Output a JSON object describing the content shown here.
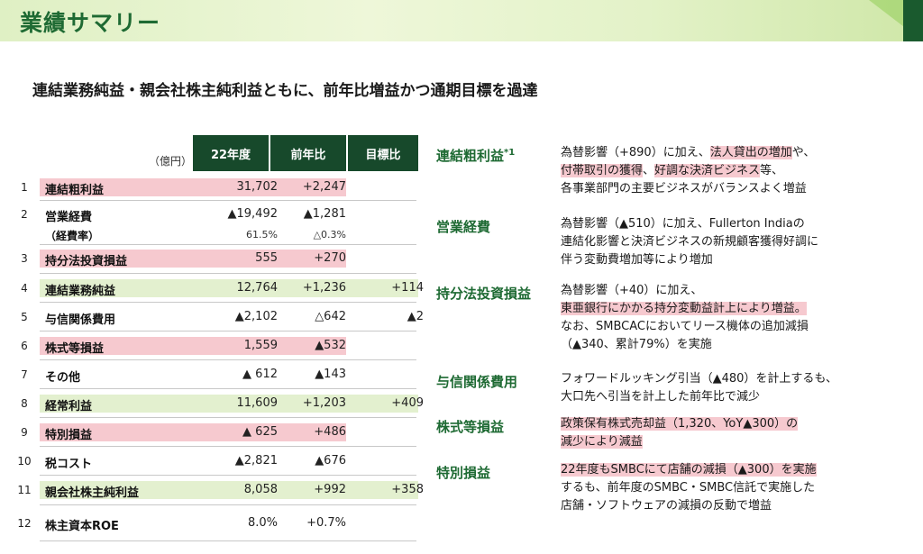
{
  "header": {
    "title": "業績サマリー"
  },
  "subtitle": "連結業務純益・親会社株主純利益ともに、前年比増益かつ通期目標を過達",
  "table": {
    "unit": "（億円）",
    "headers": [
      "22年度",
      "前年比",
      "目標比"
    ],
    "rows": [
      {
        "no": "1",
        "label": "連結粗利益",
        "v1": "31,702",
        "v2": "+2,247",
        "v3": ""
      },
      {
        "no": "2",
        "label": "営業経費",
        "v1": "▲19,492",
        "v2": "▲1,281",
        "v3": "",
        "sub_label": "（経費率）",
        "sub_v1": "61.5%",
        "sub_v2": "△0.3%"
      },
      {
        "no": "3",
        "label": "持分法投資損益",
        "v1": "555",
        "v2": "+270",
        "v3": ""
      },
      {
        "no": "4",
        "label": "連結業務純益",
        "v1": "12,764",
        "v2": "+1,236",
        "v3": "+114"
      },
      {
        "no": "5",
        "label": "与信関係費用",
        "v1": "▲2,102",
        "v2": "△642",
        "v3": "▲2"
      },
      {
        "no": "6",
        "label": "株式等損益",
        "v1": "1,559",
        "v2": "▲532",
        "v3": ""
      },
      {
        "no": "7",
        "label": "その他",
        "v1": "▲ 612",
        "v2": "▲143",
        "v3": ""
      },
      {
        "no": "8",
        "label": "経常利益",
        "v1": "11,609",
        "v2": "+1,203",
        "v3": "+409"
      },
      {
        "no": "9",
        "label": "特別損益",
        "v1": "▲ 625",
        "v2": "+486",
        "v3": ""
      },
      {
        "no": "10",
        "label": "税コスト",
        "v1": "▲2,821",
        "v2": "▲676",
        "v3": ""
      },
      {
        "no": "11",
        "label": "親会社株主純利益",
        "v1": "8,058",
        "v2": "+992",
        "v3": "+358"
      },
      {
        "no": "12",
        "label": "株主資本ROE",
        "v1": "8.0%",
        "v2": "+0.7%",
        "v3": ""
      }
    ]
  },
  "notes": [
    {
      "heading": "連結粗利益",
      "sup": "*1",
      "lines": [
        [
          "為替影響（+890）に加え、",
          {
            "hl": "法人貸出の増加"
          },
          "や、"
        ],
        [
          {
            "hl": "付帯取引の獲得"
          },
          "、",
          {
            "hl": "好調な決済ビジネス"
          },
          "等、"
        ],
        [
          "各事業部門の主要ビジネスがバランスよく増益"
        ]
      ]
    },
    {
      "heading": "営業経費",
      "lines": [
        [
          "為替影響（▲510）に加え、Fullerton Indiaの"
        ],
        [
          "連結化影響と決済ビジネスの新規顧客獲得好調に"
        ],
        [
          "伴う変動費増加等により増加"
        ]
      ]
    },
    {
      "heading": "持分法投資損益",
      "lines": [
        [
          "為替影響（+40）に加え、"
        ],
        [
          {
            "hl": "東亜銀行にかかる持分変動益計上により増益。"
          }
        ],
        [
          "なお、SMBCACにおいてリース機体の追加減損"
        ],
        [
          "（▲340、累計79%）を実施"
        ]
      ]
    },
    {
      "heading": "与信関係費用",
      "lines": [
        [
          "フォワードルッキング引当（▲480）を計上するも、"
        ],
        [
          "大口先へ引当を計上した前年比で減少"
        ]
      ]
    },
    {
      "heading": "株式等損益",
      "lines": [
        [
          {
            "hl": "政策保有株式売却益（1,320、YoY▲300）の"
          }
        ],
        [
          {
            "hl": "減少により減益"
          }
        ]
      ]
    },
    {
      "heading": "特別損益",
      "lines": [
        [
          {
            "hl": "22年度もSMBCにて店舗の減損（▲300）を実施"
          }
        ],
        [
          "するも、前年度のSMBC・SMBC信託で実施した"
        ],
        [
          "店舗・ソフトウェアの減損の反動で増益"
        ]
      ]
    }
  ],
  "colors": {
    "accent_green": "#1e6a33",
    "header_dark": "#17492b",
    "pink": "#f6c9cf",
    "light_green": "#e3f0cf"
  }
}
